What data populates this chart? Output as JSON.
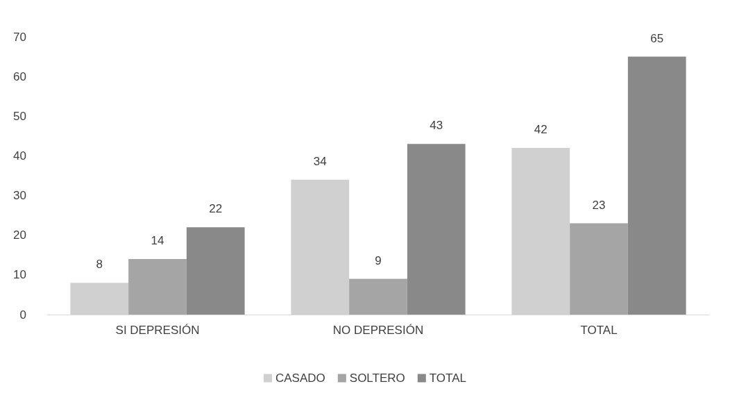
{
  "chart_data": {
    "type": "bar",
    "categories": [
      "SI DEPRESIÓN",
      "NO DEPRESIÓN",
      "TOTAL"
    ],
    "series": [
      {
        "name": "CASADO",
        "color": "#d0d0d0",
        "values": [
          8,
          34,
          42
        ]
      },
      {
        "name": "SOLTERO",
        "color": "#a5a5a5",
        "values": [
          14,
          9,
          23
        ]
      },
      {
        "name": "TOTAL",
        "color": "#898989",
        "values": [
          22,
          43,
          65
        ]
      }
    ],
    "ylim": [
      0,
      70
    ],
    "yticks": [
      0,
      10,
      20,
      30,
      40,
      50,
      60,
      70
    ],
    "grid": false,
    "legend": "bottom",
    "data_labels": true
  }
}
